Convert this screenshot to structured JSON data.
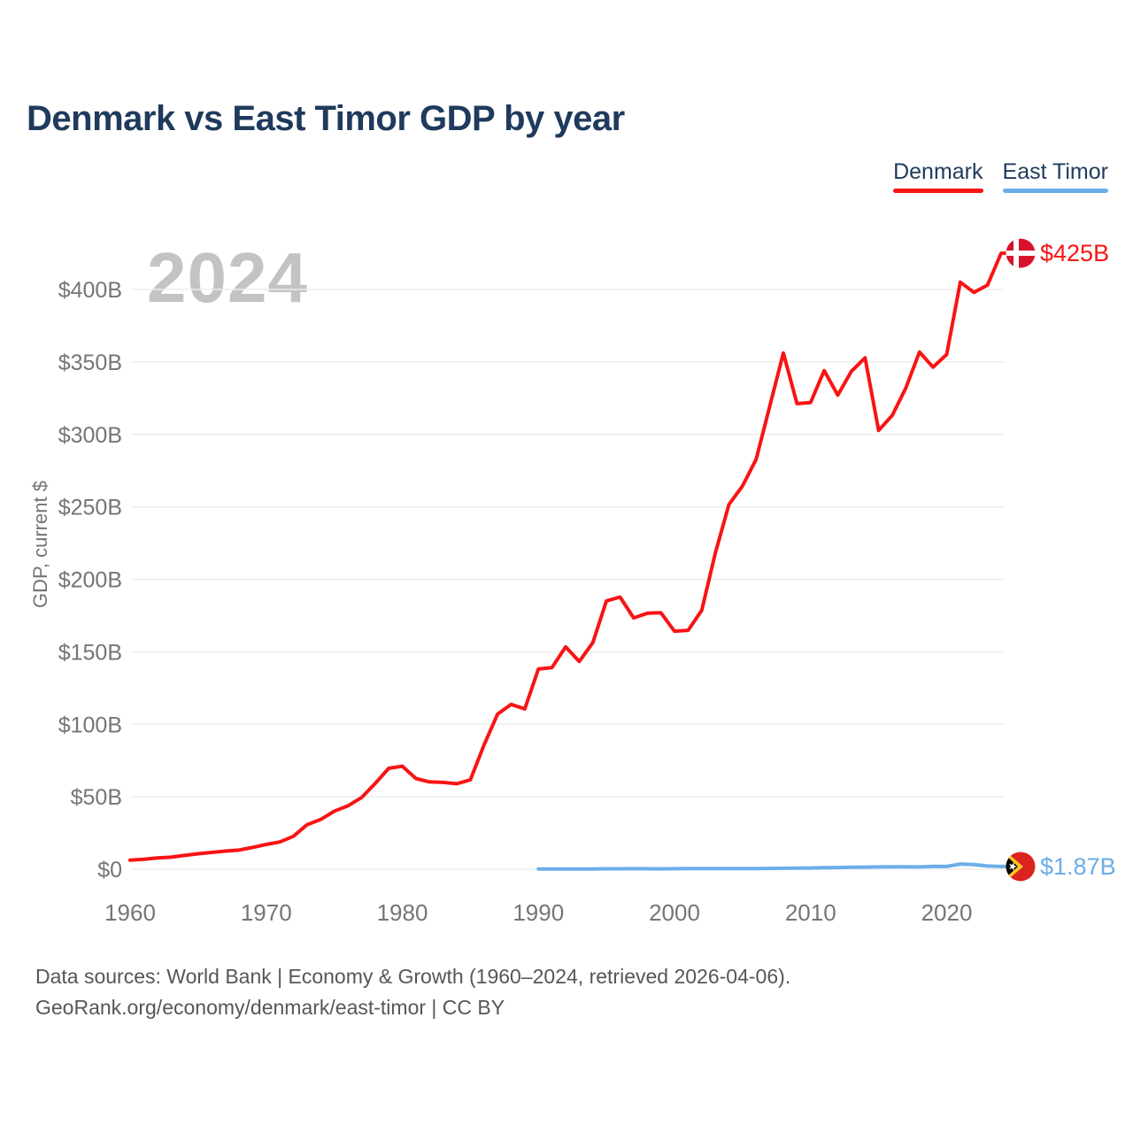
{
  "header": {
    "title": "Denmark vs East Timor GDP by year"
  },
  "legend": {
    "items": [
      {
        "label": "Denmark",
        "color": "#f81414"
      },
      {
        "label": "East Timor",
        "color": "#6aaee8"
      }
    ]
  },
  "watermark": "2024",
  "footer": {
    "line1": "Data sources: World Bank | Economy & Growth (1960–2024, retrieved 2026-04-06).",
    "line2": "GeoRank.org/economy/denmark/east-timor | CC BY"
  },
  "colors": {
    "title_navy": "#1f3a5c",
    "axis_gray": "#757575",
    "grid_gray": "#ededed",
    "watermark_gray": "#c3c3c3",
    "denmark_red": "#f81414",
    "east_timor_blue": "#6aaee8"
  },
  "chart_data": {
    "type": "line",
    "title": "Denmark vs East Timor GDP by year",
    "xlabel": "",
    "ylabel": "GDP, current $",
    "x_range": [
      1960,
      2024
    ],
    "ylim": [
      0,
      425
    ],
    "grid": true,
    "y_tick_values": [
      0,
      50,
      100,
      150,
      200,
      250,
      300,
      350,
      400
    ],
    "y_tick_labels": [
      "$0",
      "$50B",
      "$100B",
      "$150B",
      "$200B",
      "$250B",
      "$300B",
      "$350B",
      "$400B"
    ],
    "x_tick_values": [
      1960,
      1970,
      1980,
      1990,
      2000,
      2010,
      2020
    ],
    "x_tick_labels": [
      "1960",
      "1970",
      "1980",
      "1990",
      "2000",
      "2010",
      "2020"
    ],
    "series": [
      {
        "name": "Denmark",
        "color": "#f81414",
        "flag": "denmark",
        "start_year": 1960,
        "end_label": "$425B",
        "values": [
          6.2,
          6.9,
          7.8,
          8.3,
          9.5,
          10.7,
          11.6,
          12.5,
          13.2,
          15.0,
          17.1,
          18.8,
          22.7,
          30.7,
          34.3,
          40.0,
          43.7,
          49.4,
          59.1,
          69.6,
          71.1,
          62.6,
          60.2,
          59.9,
          59.0,
          61.7,
          85.7,
          107.0,
          113.7,
          110.6,
          138.2,
          139.1,
          153.4,
          143.3,
          156.4,
          185.1,
          187.8,
          173.4,
          176.6,
          177.0,
          164.2,
          164.8,
          178.6,
          218.1,
          251.6,
          264.5,
          282.9,
          319.4,
          356.1,
          321.2,
          322.0,
          344.0,
          327.1,
          343.6,
          352.8,
          302.7,
          313.1,
          332.1,
          356.8,
          346.4,
          355.2,
          405.0,
          398.0,
          403.0,
          425.0
        ]
      },
      {
        "name": "East Timor",
        "color": "#6aaee8",
        "flag": "east_timor",
        "start_year": 1990,
        "end_label": "$1.87B",
        "values": [
          0.14,
          0.15,
          0.15,
          0.16,
          0.17,
          0.31,
          0.33,
          0.35,
          0.32,
          0.27,
          0.37,
          0.48,
          0.47,
          0.47,
          0.43,
          0.48,
          0.45,
          0.54,
          0.65,
          0.74,
          0.88,
          1.05,
          1.16,
          1.43,
          1.45,
          1.59,
          1.65,
          1.62,
          1.56,
          2.02,
          1.9,
          3.6,
          3.2,
          2.2,
          1.87
        ]
      }
    ],
    "legend_position": "top-right"
  }
}
